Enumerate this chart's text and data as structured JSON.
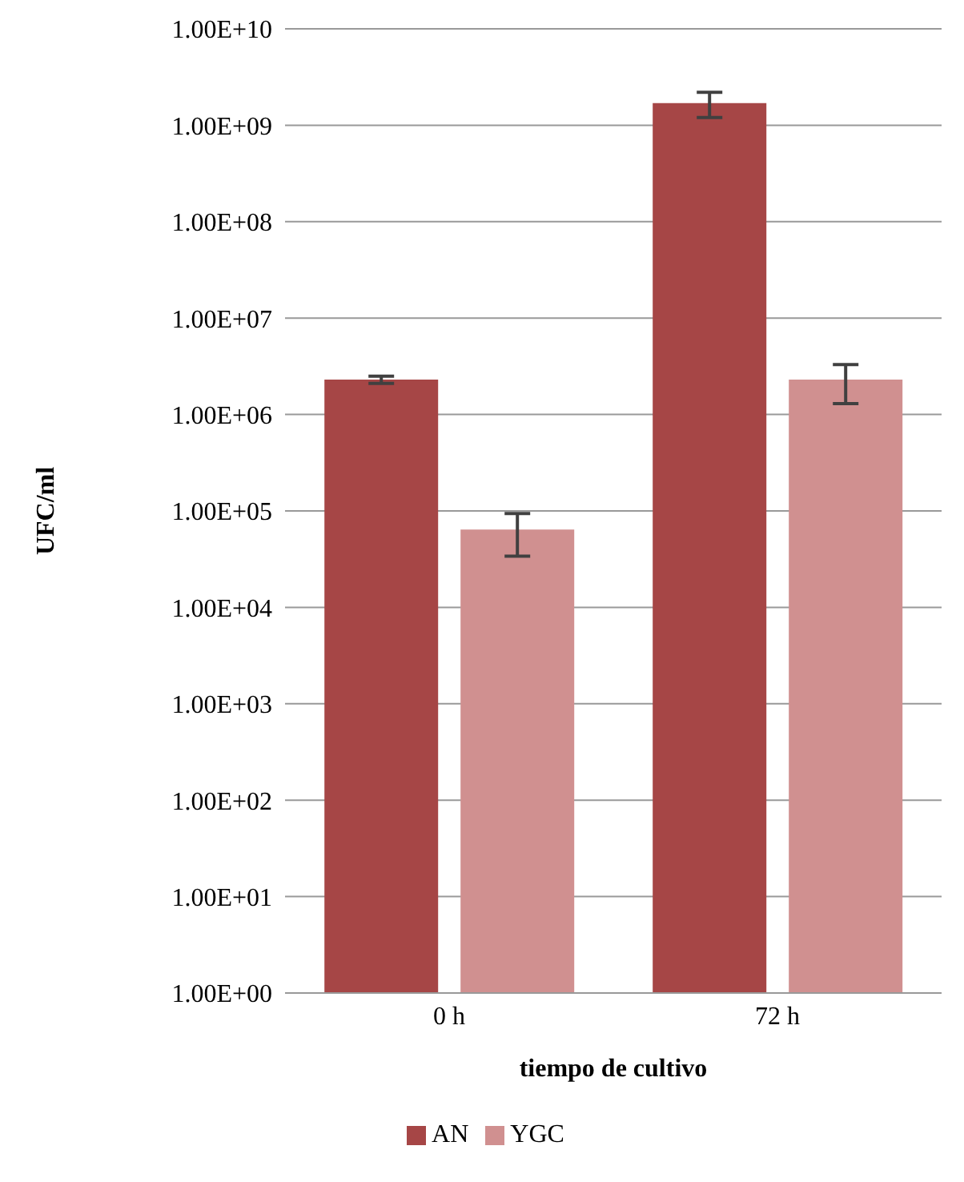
{
  "chart_data": {
    "type": "bar",
    "xlabel": "tiempo de cultivo",
    "ylabel": "UFC/ml",
    "categories": [
      "0 h",
      "72 h"
    ],
    "series": [
      {
        "name": "AN",
        "color": "#a64646",
        "values": [
          2300000,
          1700000000
        ],
        "errors": [
          200000,
          500000000
        ]
      },
      {
        "name": "YGC",
        "color": "#d09090",
        "values": [
          64000,
          2300000
        ],
        "errors": [
          30000,
          1000000
        ]
      }
    ],
    "log": "y",
    "ylim": [
      1,
      10000000000
    ],
    "yticks": [
      {
        "value": 1,
        "label": "1.00E+00"
      },
      {
        "value": 10,
        "label": "1.00E+01"
      },
      {
        "value": 100,
        "label": "1.00E+02"
      },
      {
        "value": 1000,
        "label": "1.00E+03"
      },
      {
        "value": 10000,
        "label": "1.00E+04"
      },
      {
        "value": 100000,
        "label": "1.00E+05"
      },
      {
        "value": 1000000,
        "label": "1.00E+06"
      },
      {
        "value": 10000000,
        "label": "1.00E+07"
      },
      {
        "value": 100000000,
        "label": "1.00E+08"
      },
      {
        "value": 1000000000,
        "label": "1.00E+09"
      },
      {
        "value": 10000000000,
        "label": "1.00E+10"
      }
    ],
    "grid": "y",
    "legend": "bottom"
  }
}
